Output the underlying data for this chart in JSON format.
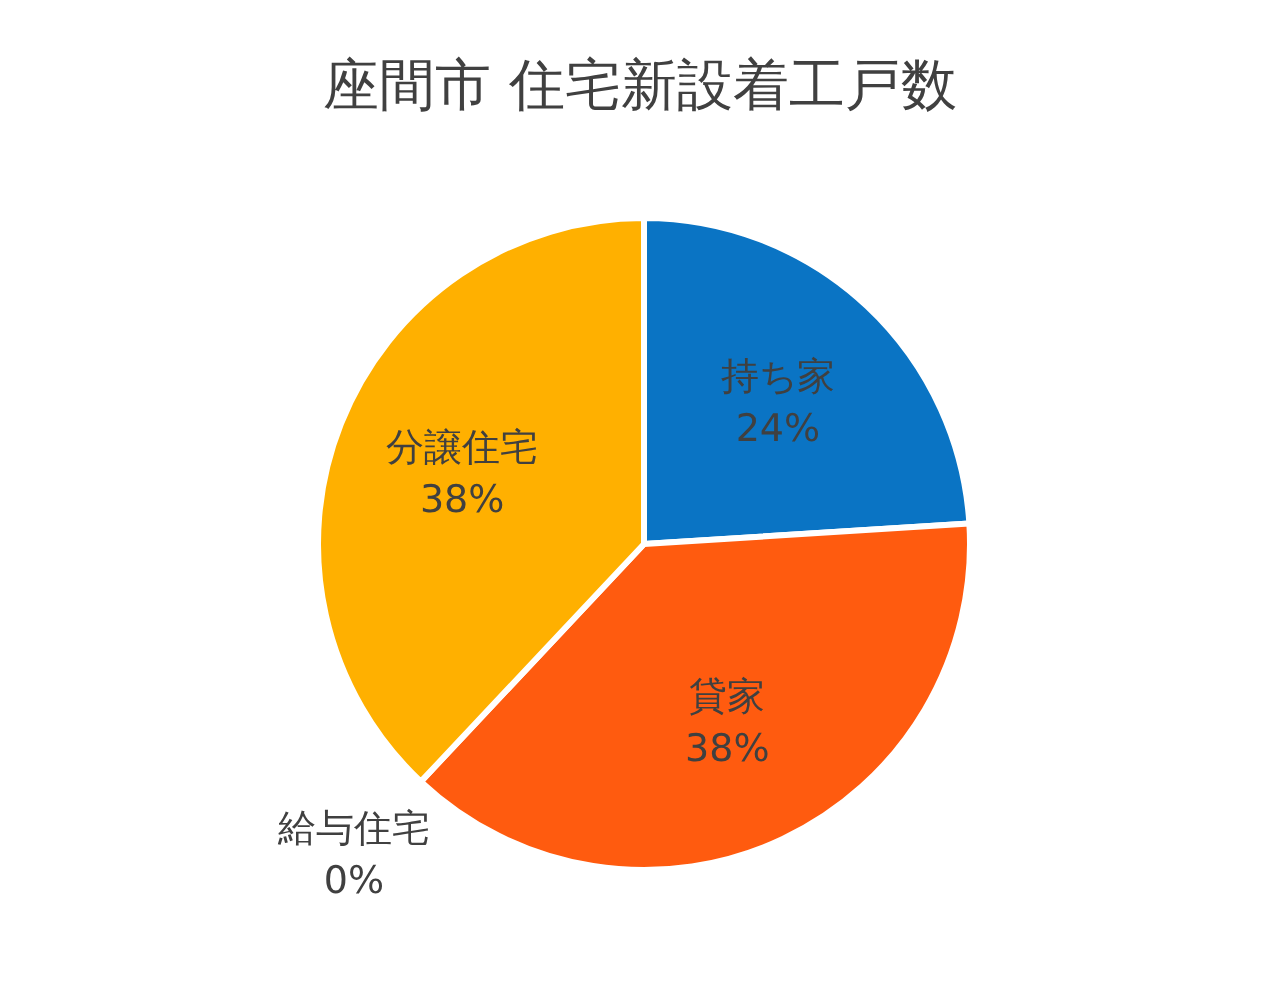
{
  "chart_data": {
    "type": "pie",
    "title": "座間市 住宅新設着工戸数",
    "categories": [
      "持ち家",
      "貸家",
      "給与住宅",
      "分譲住宅"
    ],
    "values": [
      24,
      38,
      0,
      38
    ],
    "value_labels": [
      "24%",
      "38%",
      "0%",
      "38%"
    ],
    "colors": [
      "#0a74c4",
      "#ff5b0f",
      "#a5a5a5",
      "#ffb000"
    ],
    "legend": false
  }
}
